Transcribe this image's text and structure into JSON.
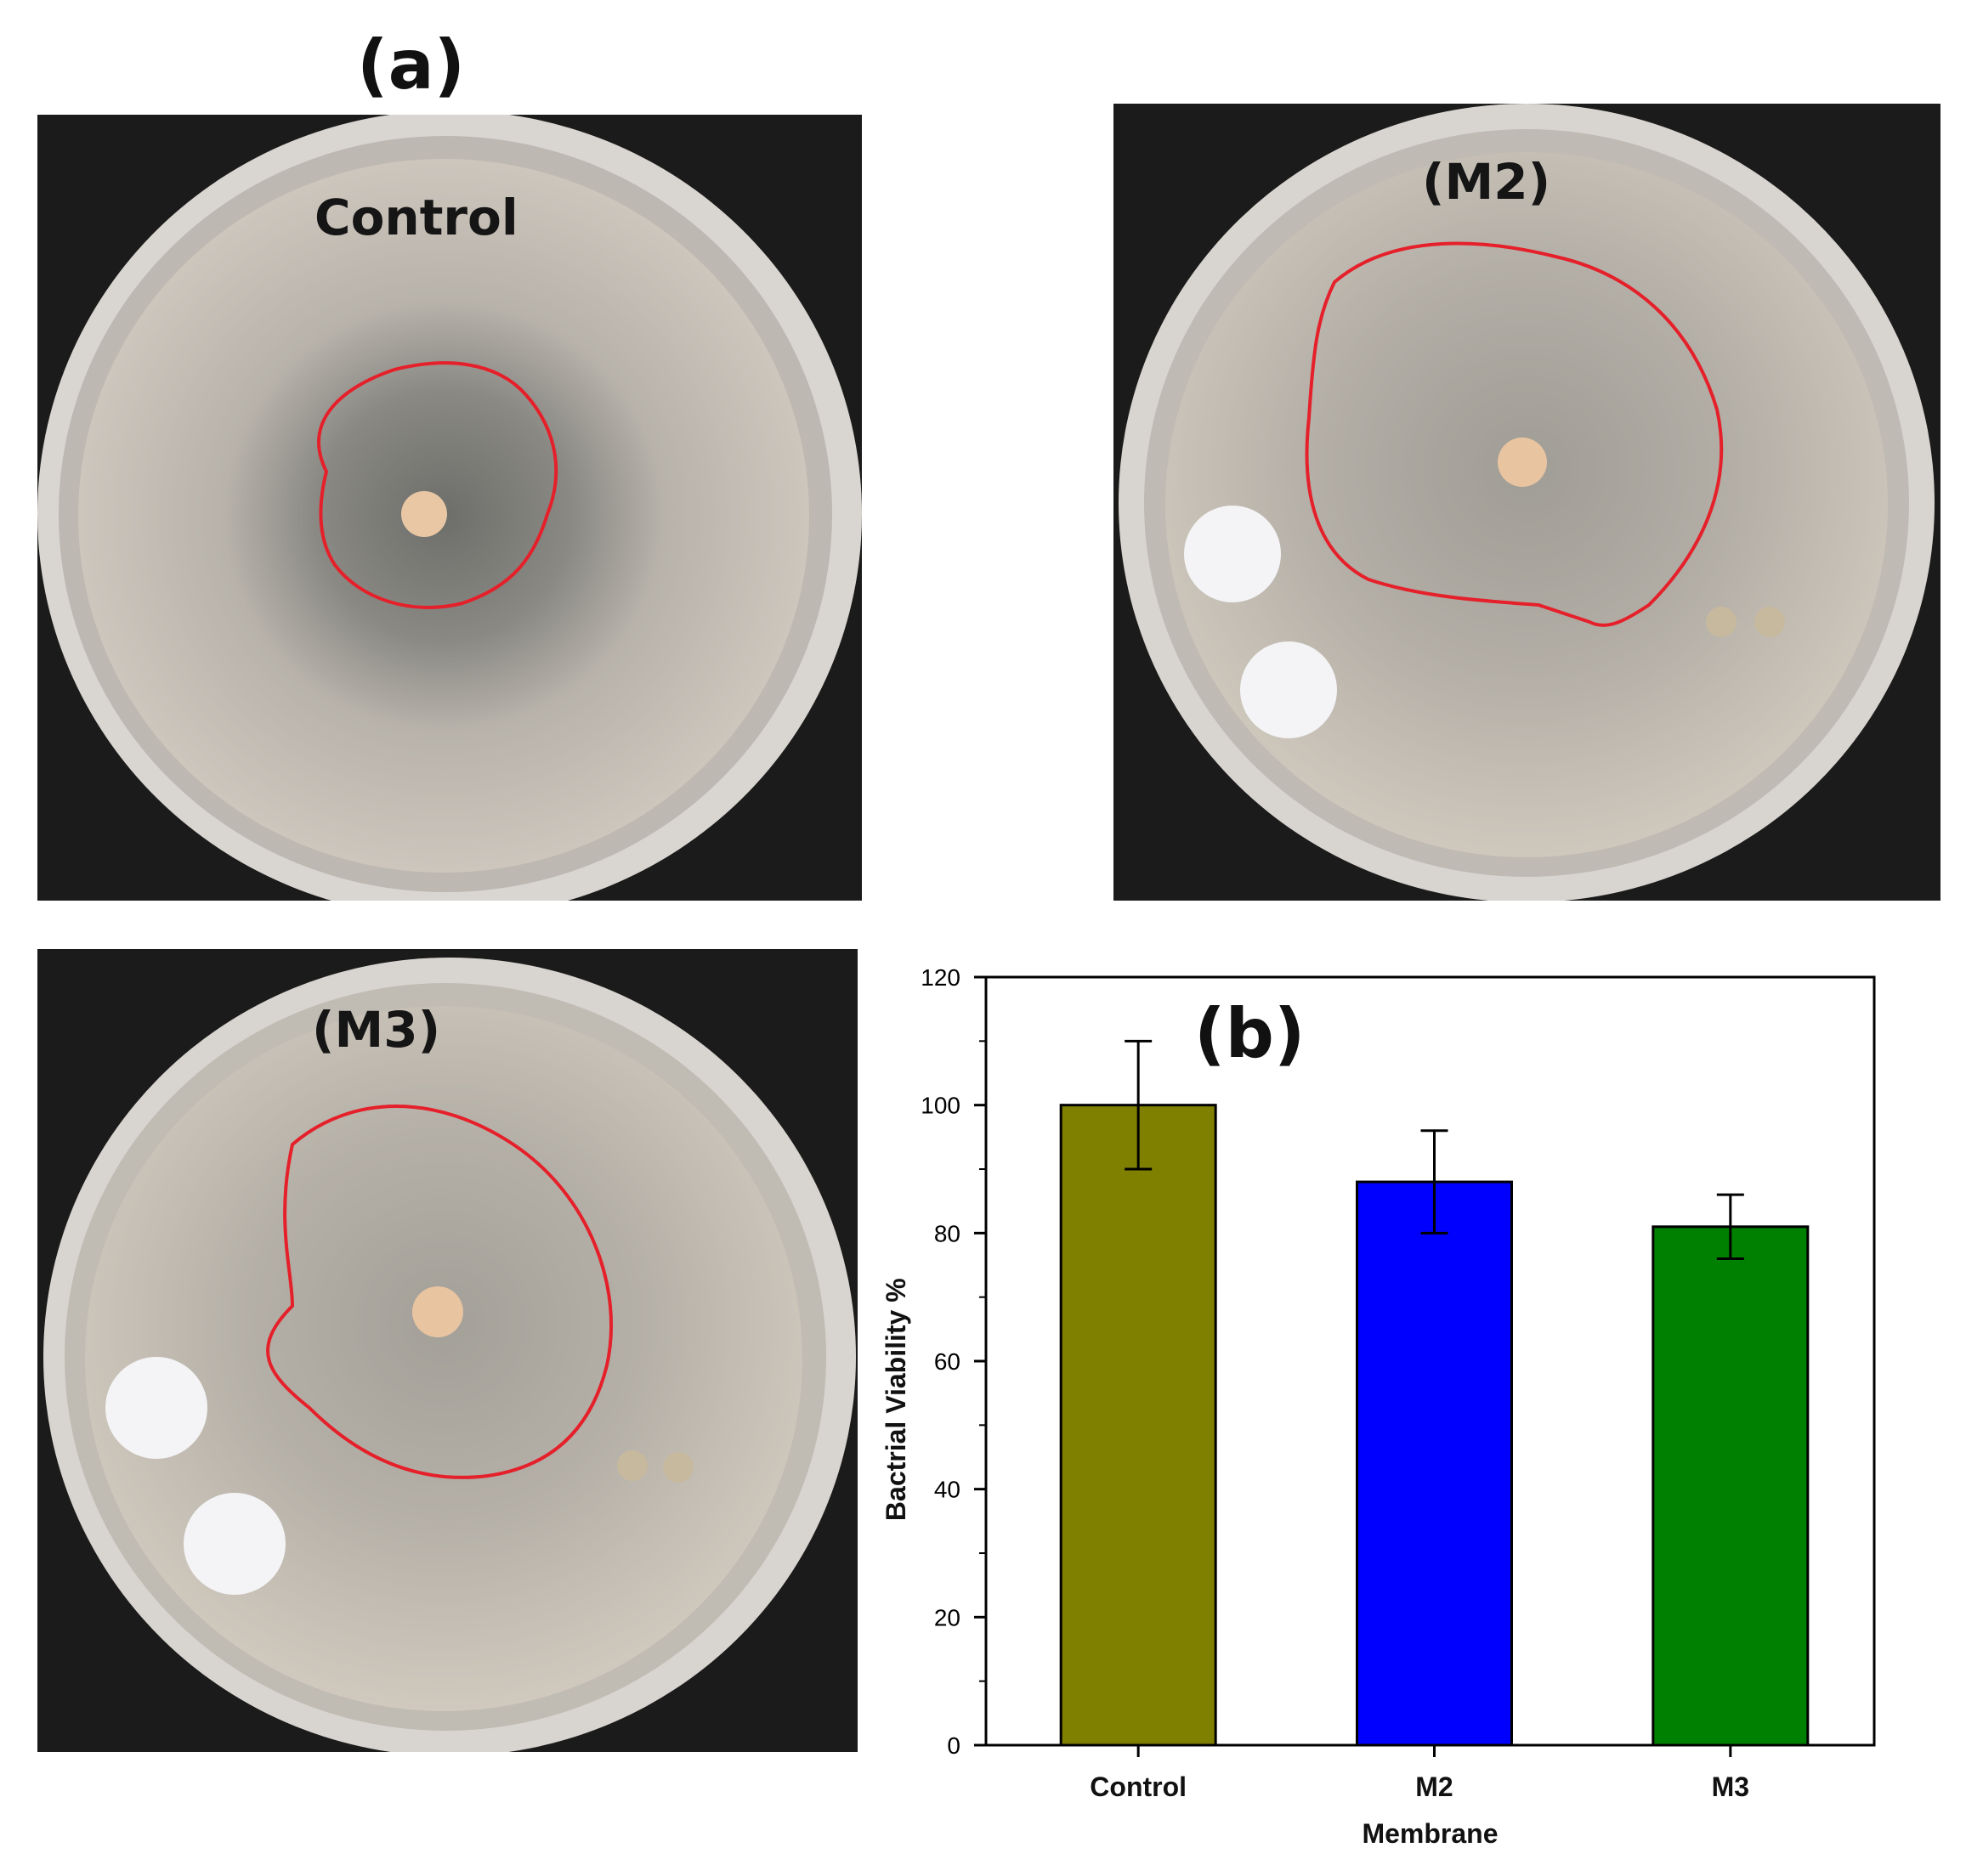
{
  "panel_a_label": "(a)",
  "panel_b_label": "(b)",
  "plates": [
    {
      "label": "Control"
    },
    {
      "label": "(M2)"
    },
    {
      "label": "(M3)"
    }
  ],
  "colors": {
    "annotation": "#e5202a",
    "agar": "#c9c3ba",
    "background": "#1b1b1b"
  },
  "chart_data": {
    "type": "bar",
    "categories": [
      "Control",
      "M2",
      "M3"
    ],
    "values": [
      100,
      88,
      81
    ],
    "errors": [
      10,
      8,
      5
    ],
    "bar_colors": [
      "#808000",
      "#0000ff",
      "#008000"
    ],
    "xlabel": "Membrane",
    "ylabel": "Bactrial Viability %",
    "ylim": [
      0,
      120
    ],
    "yticks": [
      0,
      20,
      40,
      60,
      80,
      100,
      120
    ],
    "grid": false,
    "legend": "none"
  }
}
